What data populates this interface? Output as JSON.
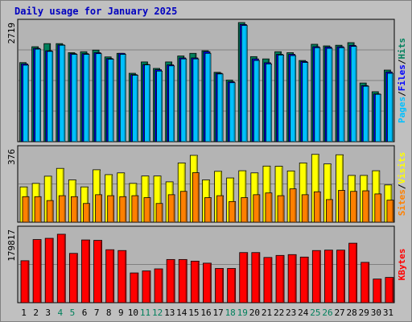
{
  "colors": {
    "background": "#c0c0c0",
    "panel": "#b4b4b4",
    "title": "#0000c0",
    "hits": "#00805c",
    "files": "#0000ff",
    "pages": "#00c0ff",
    "visits": "#ffff00",
    "sites": "#ff8000",
    "kbytes": "#ff0000",
    "weekday": "#000000",
    "weekend": "#00805c"
  },
  "chart_data": [
    {
      "type": "bar",
      "title": "Daily usage for January 2025",
      "y_max_label": "2719",
      "legend": [
        "Pages",
        "Files",
        "Hits"
      ],
      "legend_placement": "right",
      "ylim": [
        0,
        2719
      ],
      "categories": [
        "1",
        "2",
        "3",
        "4",
        "5",
        "6",
        "7",
        "8",
        "9",
        "10",
        "11",
        "12",
        "13",
        "14",
        "15",
        "16",
        "17",
        "18",
        "19",
        "20",
        "21",
        "22",
        "23",
        "24",
        "25",
        "26",
        "27",
        "28",
        "29",
        "30",
        "31"
      ],
      "weekend_days": [
        "4",
        "5",
        "11",
        "12",
        "18",
        "19",
        "25",
        "26"
      ],
      "series": [
        {
          "name": "Hits",
          "values": [
            1805,
            2167,
            2238,
            2238,
            2031,
            2053,
            2090,
            1934,
            2016,
            1561,
            1820,
            1672,
            1820,
            1956,
            2016,
            2075,
            1583,
            1406,
            2719,
            1941,
            1889,
            2053,
            2031,
            1853,
            2223,
            2186,
            2201,
            2260,
            1339,
            1140,
            1634
          ]
        },
        {
          "name": "Files",
          "values": [
            1775,
            2130,
            2075,
            2209,
            2009,
            2009,
            2031,
            1897,
            2016,
            1530,
            1761,
            1642,
            1753,
            1911,
            1911,
            2053,
            1561,
            1368,
            2675,
            1889,
            1802,
            1993,
            1993,
            1830,
            2167,
            2160,
            2167,
            2198,
            1280,
            1090,
            1590
          ]
        },
        {
          "name": "Pages",
          "values": [
            1746,
            2112,
            2060,
            2201,
            1993,
            1993,
            2009,
            1882,
            1993,
            1516,
            1753,
            1612,
            1731,
            1889,
            1889,
            2016,
            1546,
            1346,
            2652,
            1853,
            1775,
            1978,
            1964,
            1808,
            2145,
            2130,
            2145,
            2175,
            1265,
            1081,
            1560
          ]
        }
      ]
    },
    {
      "type": "bar",
      "y_max_label": "376",
      "legend": [
        "Sites",
        "Visits"
      ],
      "legend_placement": "right",
      "ylim": [
        0,
        376
      ],
      "categories": [
        "1",
        "2",
        "3",
        "4",
        "5",
        "6",
        "7",
        "8",
        "9",
        "10",
        "11",
        "12",
        "13",
        "14",
        "15",
        "16",
        "17",
        "18",
        "19",
        "20",
        "21",
        "22",
        "23",
        "24",
        "25",
        "26",
        "27",
        "28",
        "29",
        "30",
        "31"
      ],
      "series": [
        {
          "name": "Visits",
          "values": [
            181,
            199,
            236,
            276,
            217,
            181,
            269,
            244,
            253,
            199,
            237,
            237,
            207,
            304,
            343,
            217,
            261,
            227,
            264,
            253,
            288,
            287,
            263,
            304,
            348,
            299,
            346,
            240,
            240,
            264,
            191
          ]
        },
        {
          "name": "Sites",
          "values": [
            131,
            131,
            111,
            136,
            131,
            96,
            141,
            136,
            131,
            136,
            126,
            96,
            141,
            158,
            254,
            126,
            136,
            106,
            126,
            141,
            150,
            136,
            171,
            141,
            156,
            116,
            163,
            158,
            161,
            145,
            113
          ]
        }
      ]
    },
    {
      "type": "bar",
      "y_max_label": "179817",
      "legend": [
        "KBytes"
      ],
      "legend_placement": "right",
      "ylim": [
        0,
        179817
      ],
      "categories": [
        "1",
        "2",
        "3",
        "4",
        "5",
        "6",
        "7",
        "8",
        "9",
        "10",
        "11",
        "12",
        "13",
        "14",
        "15",
        "16",
        "17",
        "18",
        "19",
        "20",
        "21",
        "22",
        "23",
        "24",
        "25",
        "26",
        "27",
        "28",
        "29",
        "30",
        "31"
      ],
      "series": [
        {
          "name": "KBytes",
          "values": [
            103000,
            155000,
            158000,
            168000,
            121000,
            154000,
            153000,
            130000,
            128000,
            73000,
            78000,
            83000,
            106000,
            106000,
            102000,
            97000,
            84000,
            84000,
            123000,
            123000,
            111000,
            116000,
            118000,
            112000,
            128000,
            129000,
            129000,
            146000,
            99000,
            58000,
            62000
          ]
        }
      ]
    }
  ]
}
